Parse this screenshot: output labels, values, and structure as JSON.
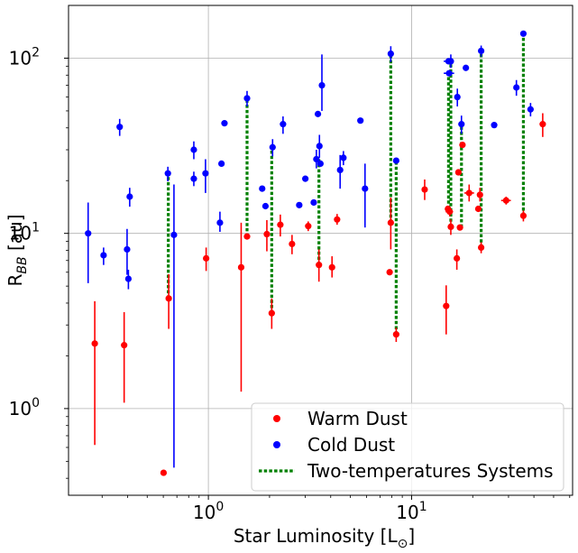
{
  "chart_data": {
    "type": "scatter",
    "title": "",
    "xlabel": "Star Luminosity [L",
    "xlabel_sub": "⊙",
    "xlabel_close": "]",
    "ylabel_main": "R",
    "ylabel_sub": "BB",
    "ylabel_unit": " [au]",
    "x_scale": "log",
    "y_scale": "log",
    "xlim": [
      0.205,
      62
    ],
    "ylim": [
      0.32,
      200
    ],
    "grid": true,
    "legend_placement": "lower-right",
    "x_ticks": [
      {
        "value": 1,
        "base": "10",
        "exp": "0"
      },
      {
        "value": 10,
        "base": "10",
        "exp": "1"
      }
    ],
    "y_ticks": [
      {
        "value": 1,
        "base": "10",
        "exp": "0"
      },
      {
        "value": 10,
        "base": "10",
        "exp": "1"
      },
      {
        "value": 100,
        "base": "10",
        "exp": "2"
      }
    ],
    "colors": {
      "warm": "#ff0000",
      "cold": "#0000ff",
      "pair": "#008000"
    },
    "legend": [
      {
        "label": "Warm Dust",
        "kind": "warm"
      },
      {
        "label": "Cold Dust",
        "kind": "cold"
      },
      {
        "label": "Two-temperatures Systems",
        "kind": "pair"
      }
    ],
    "series": [
      {
        "name": "Warm Dust",
        "points": [
          {
            "x": 0.276,
            "y": 2.35,
            "ylo": 0.62,
            "yhi": 4.1
          },
          {
            "x": 0.385,
            "y": 2.3,
            "ylo": 1.08,
            "yhi": 3.55
          },
          {
            "x": 0.602,
            "y": 0.43
          },
          {
            "x": 0.638,
            "y": 4.25,
            "ylo": 2.85,
            "yhi": 5.85
          },
          {
            "x": 0.975,
            "y": 7.2,
            "ylo": 6.1,
            "yhi": 8.3
          },
          {
            "x": 1.45,
            "y": 6.4,
            "ylo": 1.25,
            "yhi": 11.5
          },
          {
            "x": 1.55,
            "y": 9.6
          },
          {
            "x": 1.94,
            "y": 9.9,
            "ylo": 7.9,
            "yhi": 11.9
          },
          {
            "x": 2.05,
            "y": 3.5,
            "ylo": 2.85,
            "yhi": 4.25
          },
          {
            "x": 2.26,
            "y": 11.2,
            "ylo": 9.6,
            "yhi": 12.8
          },
          {
            "x": 2.58,
            "y": 8.7,
            "ylo": 7.6,
            "yhi": 9.8
          },
          {
            "x": 3.1,
            "y": 11.0,
            "ylo": 10.3,
            "yhi": 11.7
          },
          {
            "x": 3.5,
            "y": 6.6,
            "ylo": 5.3,
            "yhi": 8.1
          },
          {
            "x": 4.06,
            "y": 6.4,
            "ylo": 5.6,
            "yhi": 7.4
          },
          {
            "x": 4.3,
            "y": 12.0,
            "ylo": 11.2,
            "yhi": 12.9
          },
          {
            "x": 7.8,
            "y": 6.0
          },
          {
            "x": 7.9,
            "y": 11.5,
            "ylo": 8.1,
            "yhi": 16.0
          },
          {
            "x": 8.4,
            "y": 2.65,
            "ylo": 2.4,
            "yhi": 2.9
          },
          {
            "x": 11.6,
            "y": 17.8,
            "ylo": 15.5,
            "yhi": 20.3
          },
          {
            "x": 14.8,
            "y": 3.85,
            "ylo": 2.65,
            "yhi": 5.05
          },
          {
            "x": 15.1,
            "y": 13.8
          },
          {
            "x": 15.4,
            "y": 13.3,
            "ylo": 12.5,
            "yhi": 14.2,
            "xlo": 14.7,
            "xhi": 16.0
          },
          {
            "x": 15.6,
            "y": 10.9,
            "ylo": 9.8,
            "yhi": 12.0
          },
          {
            "x": 16.7,
            "y": 7.2,
            "ylo": 6.2,
            "yhi": 8.1
          },
          {
            "x": 17.0,
            "y": 22.3
          },
          {
            "x": 17.3,
            "y": 10.8
          },
          {
            "x": 17.8,
            "y": 32.0,
            "xlo": 17.2,
            "xhi": 18.4
          },
          {
            "x": 19.2,
            "y": 17.0,
            "ylo": 15.2,
            "yhi": 19.0,
            "xlo": 18.2,
            "xhi": 20.3
          },
          {
            "x": 21.3,
            "y": 13.8
          },
          {
            "x": 21.7,
            "y": 16.6,
            "ylo": 15.2,
            "yhi": 18.2
          },
          {
            "x": 22.0,
            "y": 8.3,
            "ylo": 7.7,
            "yhi": 8.9
          },
          {
            "x": 29.2,
            "y": 15.4,
            "ylo": 14.6,
            "yhi": 16.2,
            "xlo": 27.6,
            "xhi": 30.8
          },
          {
            "x": 35.5,
            "y": 12.6,
            "ylo": 11.7,
            "yhi": 13.5
          },
          {
            "x": 44.2,
            "y": 42.0,
            "ylo": 35.5,
            "yhi": 48.5
          }
        ]
      },
      {
        "name": "Cold Dust",
        "points": [
          {
            "x": 0.256,
            "y": 10.0,
            "ylo": 5.2,
            "yhi": 15.0
          },
          {
            "x": 0.305,
            "y": 7.5,
            "ylo": 6.6,
            "yhi": 8.3
          },
          {
            "x": 0.366,
            "y": 40.5,
            "ylo": 36.0,
            "yhi": 45.0
          },
          {
            "x": 0.398,
            "y": 8.1,
            "ylo": 5.8,
            "yhi": 10.6
          },
          {
            "x": 0.404,
            "y": 5.5,
            "ylo": 4.8,
            "yhi": 6.2
          },
          {
            "x": 0.41,
            "y": 16.2,
            "ylo": 14.2,
            "yhi": 18.2
          },
          {
            "x": 0.632,
            "y": 22.0,
            "ylo": 19.8,
            "yhi": 24.0
          },
          {
            "x": 0.677,
            "y": 9.8,
            "ylo": 0.46,
            "yhi": 19.0
          },
          {
            "x": 0.848,
            "y": 30.0,
            "ylo": 26.5,
            "yhi": 33.5
          },
          {
            "x": 0.848,
            "y": 20.5,
            "ylo": 18.6,
            "yhi": 22.5
          },
          {
            "x": 0.968,
            "y": 22.0,
            "ylo": 17.0,
            "yhi": 26.5
          },
          {
            "x": 1.14,
            "y": 11.5,
            "ylo": 10.2,
            "yhi": 13.3
          },
          {
            "x": 1.16,
            "y": 25.0
          },
          {
            "x": 1.2,
            "y": 42.5
          },
          {
            "x": 1.55,
            "y": 59.0,
            "ylo": 53.0,
            "yhi": 65.0
          },
          {
            "x": 1.84,
            "y": 18.0
          },
          {
            "x": 1.91,
            "y": 14.3
          },
          {
            "x": 2.07,
            "y": 31.0,
            "ylo": 27.5,
            "yhi": 34.5
          },
          {
            "x": 2.33,
            "y": 42.0,
            "ylo": 37.0,
            "yhi": 46.5
          },
          {
            "x": 2.8,
            "y": 14.5
          },
          {
            "x": 3.0,
            "y": 20.5
          },
          {
            "x": 3.3,
            "y": 15.0
          },
          {
            "x": 3.4,
            "y": 26.5,
            "ylo": 23.5,
            "yhi": 30.0
          },
          {
            "x": 3.46,
            "y": 48.0
          },
          {
            "x": 3.52,
            "y": 31.5,
            "ylo": 27.0,
            "yhi": 36.5
          },
          {
            "x": 3.56,
            "y": 25.0
          },
          {
            "x": 3.62,
            "y": 70.0,
            "ylo": 50.0,
            "yhi": 105.0
          },
          {
            "x": 4.45,
            "y": 23.0,
            "ylo": 18.0,
            "yhi": 28.0
          },
          {
            "x": 4.62,
            "y": 27.0,
            "ylo": 24.5,
            "yhi": 29.5
          },
          {
            "x": 5.6,
            "y": 44.0
          },
          {
            "x": 5.9,
            "y": 18.0,
            "ylo": 10.8,
            "yhi": 25.0
          },
          {
            "x": 7.9,
            "y": 106.0,
            "ylo": 95.0,
            "yhi": 117.0
          },
          {
            "x": 8.4,
            "y": 26.0
          },
          {
            "x": 15.2,
            "y": 96.0,
            "xlo": 14.4,
            "xhi": 16.0
          },
          {
            "x": 15.3,
            "y": 82.0,
            "xlo": 14.4,
            "xhi": 16.2
          },
          {
            "x": 15.6,
            "y": 96.0,
            "ylo": 88.0,
            "yhi": 105.0
          },
          {
            "x": 16.8,
            "y": 60.0,
            "ylo": 53.0,
            "yhi": 67.0
          },
          {
            "x": 17.6,
            "y": 42.0,
            "ylo": 37.0,
            "yhi": 47.0
          },
          {
            "x": 18.5,
            "y": 88.0
          },
          {
            "x": 22.0,
            "y": 110.0,
            "ylo": 102.0,
            "yhi": 118.0
          },
          {
            "x": 25.5,
            "y": 41.5
          },
          {
            "x": 32.8,
            "y": 68.0,
            "ylo": 61.0,
            "yhi": 75.0
          },
          {
            "x": 35.5,
            "y": 138.0
          },
          {
            "x": 38.5,
            "y": 51.0,
            "ylo": 46.5,
            "yhi": 55.5
          }
        ]
      }
    ],
    "pairs": [
      {
        "x": 0.635,
        "y1": 4.25,
        "y2": 22.0
      },
      {
        "x": 1.55,
        "y1": 9.6,
        "y2": 59.0
      },
      {
        "x": 2.05,
        "y1": 3.5,
        "y2": 31.0
      },
      {
        "x": 3.5,
        "y1": 6.6,
        "y2": 26.5
      },
      {
        "x": 7.9,
        "y1": 11.5,
        "y2": 106.0
      },
      {
        "x": 8.4,
        "y1": 2.65,
        "y2": 26.0
      },
      {
        "x": 15.2,
        "y1": 13.8,
        "y2": 82.0
      },
      {
        "x": 15.6,
        "y1": 10.9,
        "y2": 96.0
      },
      {
        "x": 17.6,
        "y1": 10.8,
        "y2": 42.0
      },
      {
        "x": 22.0,
        "y1": 8.3,
        "y2": 110.0
      },
      {
        "x": 35.5,
        "y1": 12.6,
        "y2": 138.0
      }
    ]
  }
}
